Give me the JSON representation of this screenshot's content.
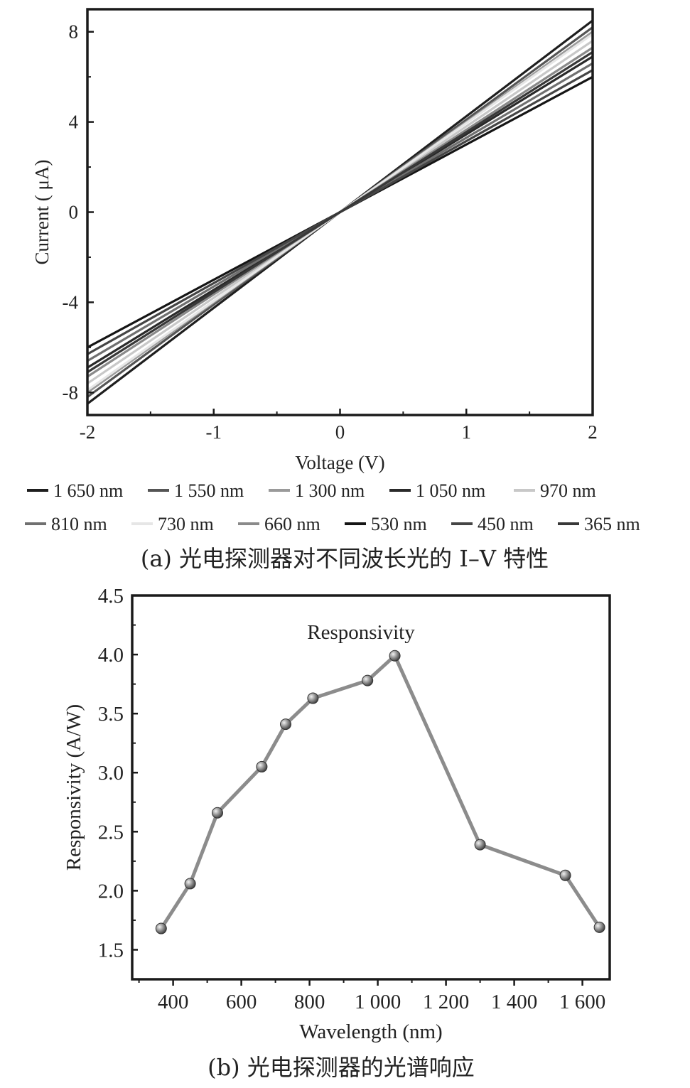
{
  "chart_data": [
    {
      "type": "line",
      "caption": "(a) 光电探测器对不同波长光的 I–V 特性",
      "xlabel": "Voltage (V)",
      "ylabel": "Current ( μA)",
      "xlim": [
        -2,
        2
      ],
      "ylim": [
        -9,
        9
      ],
      "x_ticks": [
        "-2",
        "-1",
        "0",
        "1",
        "2"
      ],
      "y_ticks": [
        "-8",
        "-4",
        "0",
        "4",
        "8"
      ],
      "legend_position": "bottom",
      "series": [
        {
          "name": "1 650 nm",
          "color": "#1e1e1e",
          "x": [
            -2,
            2
          ],
          "y": [
            -8.5,
            8.5
          ]
        },
        {
          "name": "1 550 nm",
          "color": "#555555",
          "x": [
            -2,
            2
          ],
          "y": [
            -8.2,
            8.2
          ]
        },
        {
          "name": "1 300 nm",
          "color": "#9a9a9a",
          "x": [
            -2,
            2
          ],
          "y": [
            -8.0,
            8.0
          ]
        },
        {
          "name": "1 050 nm",
          "color": "#2a2a2a",
          "x": [
            -2,
            2
          ],
          "y": [
            -6.9,
            6.9
          ]
        },
        {
          "name": "970 nm",
          "color": "#c8c8c8",
          "x": [
            -2,
            2
          ],
          "y": [
            -7.6,
            7.6
          ]
        },
        {
          "name": "810 nm",
          "color": "#707070",
          "x": [
            -2,
            2
          ],
          "y": [
            -6.6,
            6.6
          ]
        },
        {
          "name": "730 nm",
          "color": "#e6e6e6",
          "x": [
            -2,
            2
          ],
          "y": [
            -7.9,
            7.9
          ]
        },
        {
          "name": "660 nm",
          "color": "#8a8a8a",
          "x": [
            -2,
            2
          ],
          "y": [
            -7.3,
            7.3
          ]
        },
        {
          "name": "530 nm",
          "color": "#151515",
          "x": [
            -2,
            2
          ],
          "y": [
            -6.0,
            6.0
          ]
        },
        {
          "name": "450 nm",
          "color": "#454545",
          "x": [
            -2,
            2
          ],
          "y": [
            -6.3,
            6.3
          ]
        },
        {
          "name": "365 nm",
          "color": "#383838",
          "x": [
            -2,
            2
          ],
          "y": [
            -7.1,
            7.1
          ]
        }
      ]
    },
    {
      "type": "line",
      "caption": "(b) 光电探测器的光谱响应",
      "xlabel": "Wavelength (nm)",
      "ylabel": "Responsivity (A/W)",
      "xlim": [
        280,
        1680
      ],
      "ylim": [
        1.25,
        4.5
      ],
      "x_ticks": [
        "400",
        "600",
        "800",
        "1 000",
        "1 200",
        "1 400",
        "1 600"
      ],
      "y_ticks": [
        "1.5",
        "2.0",
        "2.5",
        "3.0",
        "3.5",
        "4.0",
        "4.5"
      ],
      "series": [
        {
          "name": "Responsivity",
          "color": "#8c8c8c",
          "x": [
            365,
            450,
            530,
            660,
            730,
            810,
            970,
            1050,
            1300,
            1550,
            1650
          ],
          "y": [
            1.68,
            2.06,
            2.66,
            3.05,
            3.41,
            3.63,
            3.78,
            3.99,
            2.39,
            2.13,
            1.69
          ]
        }
      ]
    }
  ]
}
